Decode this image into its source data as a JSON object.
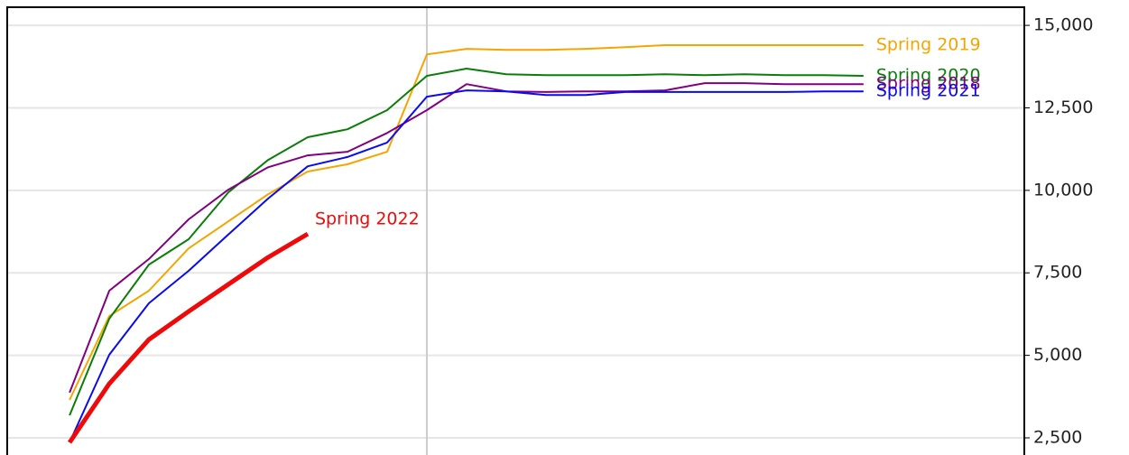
{
  "chart_data": {
    "type": "line",
    "x": [
      0,
      1,
      2,
      3,
      4,
      5,
      6,
      7,
      8,
      9,
      10,
      11,
      12,
      13,
      14,
      15,
      16,
      17,
      18,
      19,
      20
    ],
    "xlim": [
      -1.57,
      24.05
    ],
    "xticks": [
      9
    ],
    "ylim": [
      1980,
      15550
    ],
    "yticks": [
      {
        "value": 2500,
        "label": "2,500"
      },
      {
        "value": 5000,
        "label": "5,000"
      },
      {
        "value": 7500,
        "label": "7,500"
      },
      {
        "value": 10000,
        "label": "10,000"
      },
      {
        "value": 12500,
        "label": "12,500"
      },
      {
        "value": 15000,
        "label": "15,000"
      }
    ],
    "grid": true,
    "series": [
      {
        "name": "Spring 2019",
        "color": "#f5a500",
        "values": [
          3650,
          6190,
          6960,
          8240,
          9060,
          9880,
          10570,
          10790,
          11170,
          14120,
          14290,
          14260,
          14260,
          14290,
          14340,
          14400,
          14400,
          14400,
          14400,
          14400,
          14400
        ]
      },
      {
        "name": "Spring 2020",
        "color": "#0a7d0a",
        "values": [
          3180,
          6110,
          7750,
          8520,
          9940,
          10920,
          11610,
          11850,
          12430,
          13470,
          13690,
          13520,
          13490,
          13490,
          13490,
          13520,
          13490,
          13520,
          13490,
          13490,
          13470
        ]
      },
      {
        "name": "Spring 2018",
        "color": "#800080",
        "values": [
          3870,
          6960,
          7920,
          9120,
          10020,
          10700,
          11060,
          11170,
          11740,
          12430,
          13220,
          13000,
          12980,
          13000,
          13000,
          13030,
          13250,
          13250,
          13220,
          13220,
          13220
        ]
      },
      {
        "name": "Spring 2021",
        "color": "#0a0aee",
        "values": [
          2360,
          5020,
          6580,
          7560,
          8660,
          9750,
          10730,
          11010,
          11450,
          12840,
          13030,
          13000,
          12890,
          12890,
          12980,
          12980,
          12980,
          12980,
          12980,
          13000,
          13000
        ]
      },
      {
        "name": "Spring 2022",
        "color": "#ee0a0a",
        "values": [
          2360,
          4140,
          5480,
          6330,
          7150,
          7970,
          8680,
          null,
          null,
          null,
          null,
          null,
          null,
          null,
          null,
          null,
          null,
          null,
          null,
          null,
          null
        ]
      }
    ]
  }
}
